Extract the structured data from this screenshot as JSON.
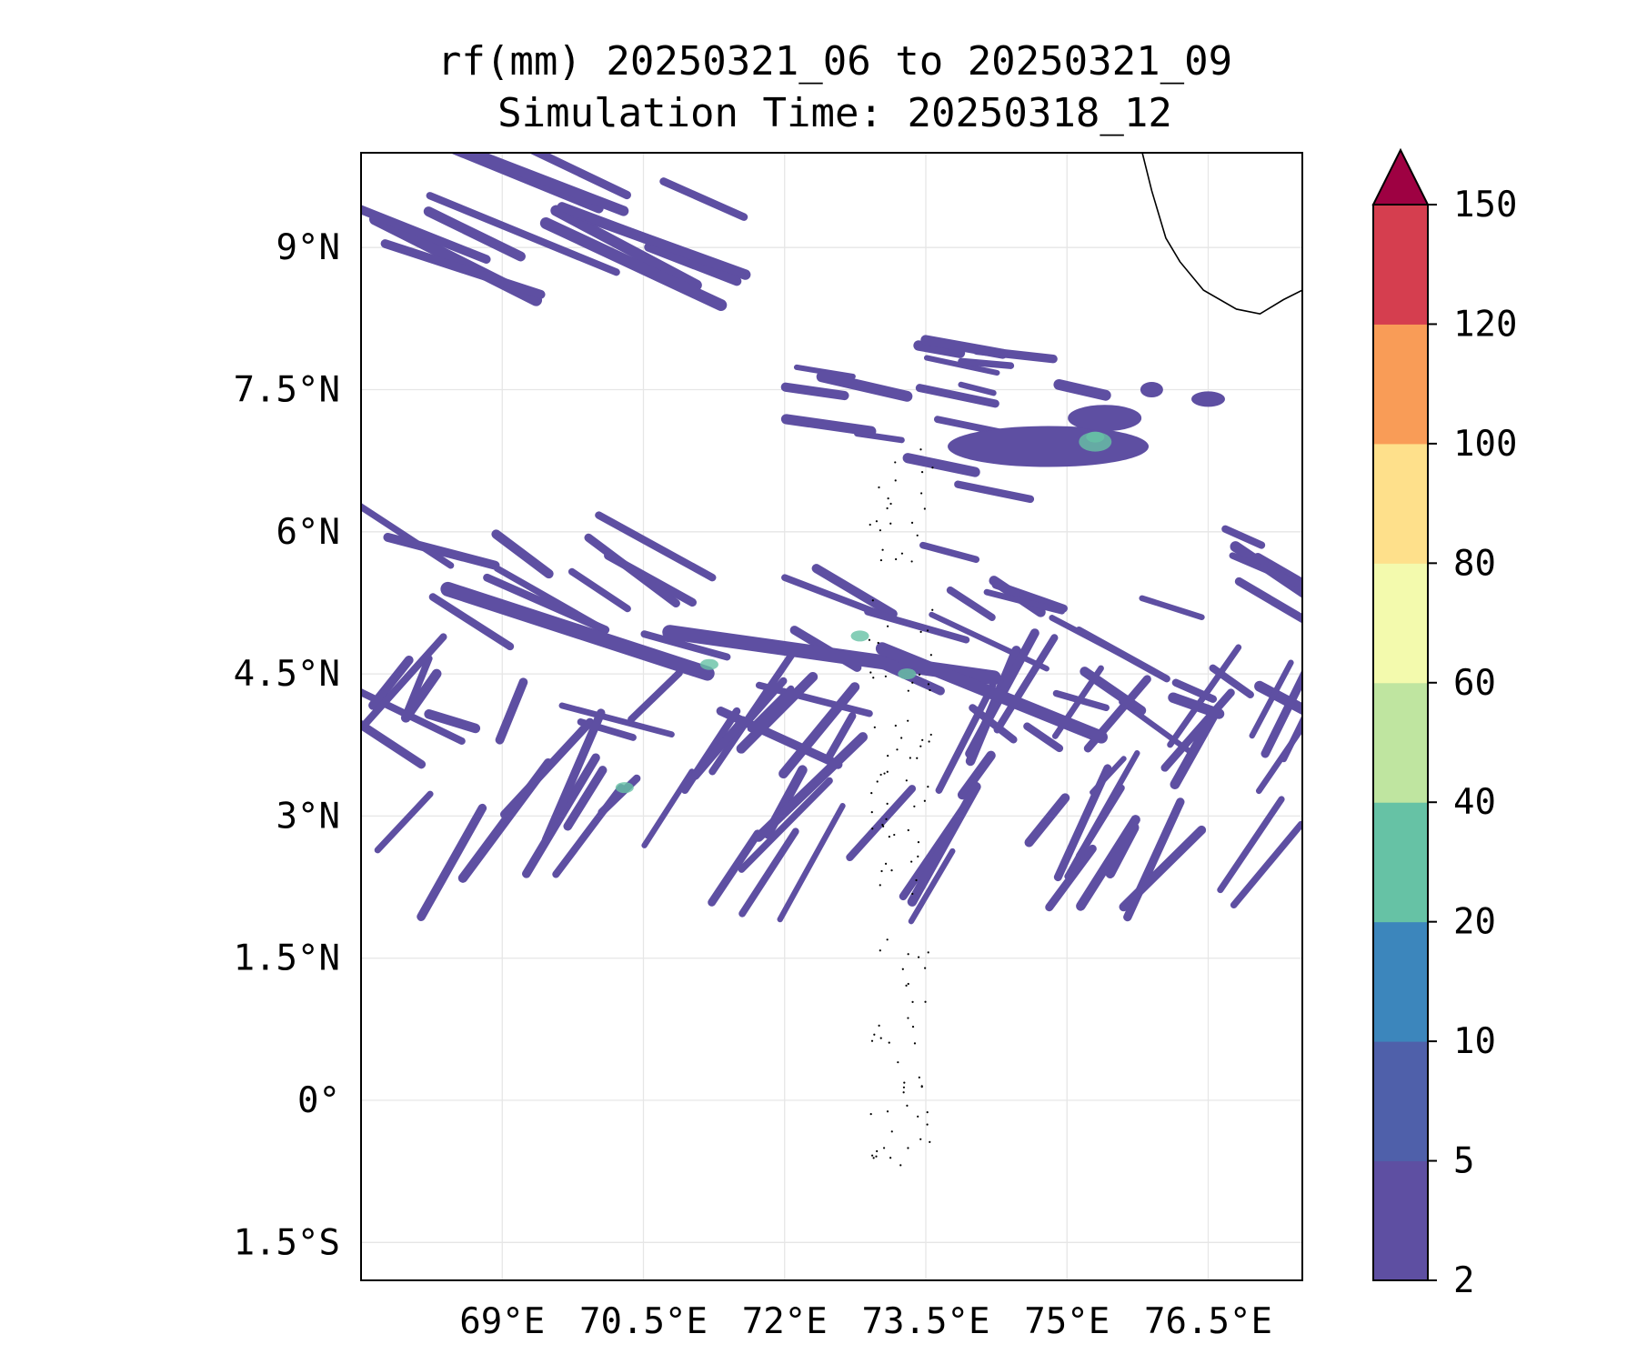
{
  "title": {
    "line1": "rf(mm) 20250321_06 to 20250321_09",
    "line2": "Simulation Time: 20250318_12"
  },
  "map": {
    "lon_range": [
      67.5,
      77.5
    ],
    "lat_range": [
      -1.9,
      10.0
    ],
    "lon_ticks": [
      69,
      70.5,
      72,
      73.5,
      75,
      76.5
    ],
    "lon_tick_labels": [
      "69°E",
      "70.5°E",
      "72°E",
      "73.5°E",
      "75°E",
      "76.5°E"
    ],
    "lat_ticks": [
      9,
      7.5,
      6,
      4.5,
      3,
      1.5,
      0,
      -1.5
    ],
    "lat_tick_labels": [
      "9°N",
      "7.5°N",
      "6°N",
      "4.5°N",
      "3°N",
      "1.5°N",
      "0°",
      "1.5°S"
    ],
    "gridlines": true,
    "coastline_color": "#000000",
    "rain_bands": [
      {
        "name": "northern band",
        "lon": [
          67.5,
          71.7
        ],
        "lat": [
          8.5,
          9.9
        ],
        "orientation": "diagonal"
      },
      {
        "name": "central band",
        "lon": [
          67.5,
          77.5
        ],
        "lat": [
          3.5,
          5.4
        ],
        "orientation": "diagonal"
      },
      {
        "name": "southern streaks",
        "lon": [
          68.0,
          77.5
        ],
        "lat": [
          2.1,
          4.5
        ],
        "orientation": "streaks"
      },
      {
        "name": "cells near 7N",
        "lon": [
          71.5,
          76.5
        ],
        "lat": [
          6.2,
          7.9
        ],
        "orientation": "zonal"
      }
    ]
  },
  "colorbar": {
    "levels": [
      2,
      5,
      10,
      20,
      40,
      60,
      80,
      100,
      120,
      150
    ],
    "tick_labels": [
      "2",
      "5",
      "10",
      "20",
      "40",
      "60",
      "80",
      "100",
      "120",
      "150"
    ],
    "colors": [
      "#5e4fa2",
      "#4f60aa",
      "#3c86bc",
      "#66c2a5",
      "#bfe5a0",
      "#f3faad",
      "#fee08b",
      "#f99c57",
      "#d53e4f"
    ],
    "extend_color": "#9e0142",
    "extend": "max"
  }
}
